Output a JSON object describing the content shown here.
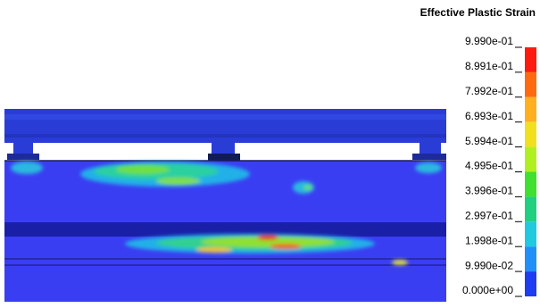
{
  "legend": {
    "title": "Effective Plastic Strain",
    "labels": [
      "9.990e-01",
      "8.991e-01",
      "7.992e-01",
      "6.993e-01",
      "5.994e-01",
      "4.995e-01",
      "3.996e-01",
      "2.997e-01",
      "1.998e-01",
      "9.990e-02",
      "0.000e+00"
    ]
  }
}
